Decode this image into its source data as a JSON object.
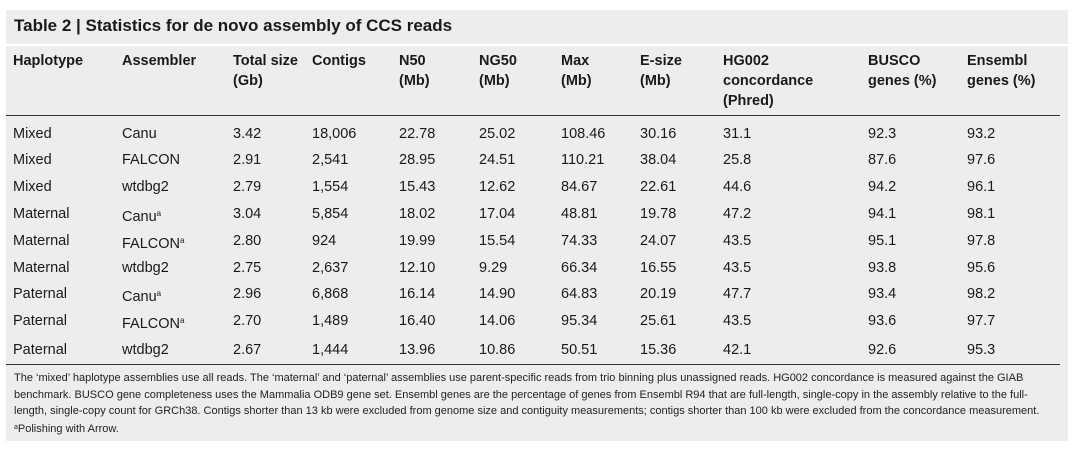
{
  "caption": {
    "label": "Table 2 | ",
    "title": "Statistics for de novo assembly of CCS reads"
  },
  "columns": [
    {
      "key": "haplotype",
      "lines": [
        "Haplotype"
      ]
    },
    {
      "key": "assembler",
      "lines": [
        "Assembler"
      ]
    },
    {
      "key": "total_size",
      "lines": [
        "Total size",
        "(Gb)"
      ]
    },
    {
      "key": "contigs",
      "lines": [
        "Contigs"
      ]
    },
    {
      "key": "n50",
      "lines": [
        "N50",
        "(Mb)"
      ]
    },
    {
      "key": "ng50",
      "lines": [
        "NG50",
        "(Mb)"
      ]
    },
    {
      "key": "max",
      "lines": [
        "Max",
        "(Mb)"
      ]
    },
    {
      "key": "e_size",
      "lines": [
        "E-size",
        "(Mb)"
      ]
    },
    {
      "key": "hg002",
      "lines": [
        "HG002",
        "concordance",
        "(Phred)"
      ]
    },
    {
      "key": "busco",
      "lines": [
        "BUSCO",
        "genes (%)"
      ]
    },
    {
      "key": "ensembl",
      "lines": [
        "Ensembl",
        "genes (%)"
      ]
    }
  ],
  "rows": [
    {
      "haplotype": "Mixed",
      "assembler": "Canu",
      "mark": "",
      "total_size": "3.42",
      "contigs": "18,006",
      "n50": "22.78",
      "ng50": "25.02",
      "max": "108.46",
      "e_size": "30.16",
      "hg002": "31.1",
      "busco": "92.3",
      "ensembl": "93.2"
    },
    {
      "haplotype": "Mixed",
      "assembler": "FALCON",
      "mark": "",
      "total_size": "2.91",
      "contigs": "2,541",
      "n50": "28.95",
      "ng50": "24.51",
      "max": "110.21",
      "e_size": "38.04",
      "hg002": "25.8",
      "busco": "87.6",
      "ensembl": "97.6"
    },
    {
      "haplotype": "Mixed",
      "assembler": "wtdbg2",
      "mark": "",
      "total_size": "2.79",
      "contigs": "1,554",
      "n50": "15.43",
      "ng50": "12.62",
      "max": "84.67",
      "e_size": "22.61",
      "hg002": "44.6",
      "busco": "94.2",
      "ensembl": "96.1"
    },
    {
      "haplotype": "Maternal",
      "assembler": "Canu",
      "mark": "a",
      "total_size": "3.04",
      "contigs": "5,854",
      "n50": "18.02",
      "ng50": "17.04",
      "max": "48.81",
      "e_size": "19.78",
      "hg002": "47.2",
      "busco": "94.1",
      "ensembl": "98.1"
    },
    {
      "haplotype": "Maternal",
      "assembler": "FALCON",
      "mark": "a",
      "total_size": "2.80",
      "contigs": "924",
      "n50": "19.99",
      "ng50": "15.54",
      "max": "74.33",
      "e_size": "24.07",
      "hg002": "43.5",
      "busco": "95.1",
      "ensembl": "97.8"
    },
    {
      "haplotype": "Maternal",
      "assembler": "wtdbg2",
      "mark": "",
      "total_size": "2.75",
      "contigs": "2,637",
      "n50": "12.10",
      "ng50": "9.29",
      "max": "66.34",
      "e_size": "16.55",
      "hg002": "43.5",
      "busco": "93.8",
      "ensembl": "95.6"
    },
    {
      "haplotype": "Paternal",
      "assembler": "Canu",
      "mark": "a",
      "total_size": "2.96",
      "contigs": "6,868",
      "n50": "16.14",
      "ng50": "14.90",
      "max": "64.83",
      "e_size": "20.19",
      "hg002": "47.7",
      "busco": "93.4",
      "ensembl": "98.2"
    },
    {
      "haplotype": "Paternal",
      "assembler": "FALCON",
      "mark": "a",
      "total_size": "2.70",
      "contigs": "1,489",
      "n50": "16.40",
      "ng50": "14.06",
      "max": "95.34",
      "e_size": "25.61",
      "hg002": "43.5",
      "busco": "93.6",
      "ensembl": "97.7"
    },
    {
      "haplotype": "Paternal",
      "assembler": "wtdbg2",
      "mark": "",
      "total_size": "2.67",
      "contigs": "1,444",
      "n50": "13.96",
      "ng50": "10.86",
      "max": "50.51",
      "e_size": "15.36",
      "hg002": "42.1",
      "busco": "92.6",
      "ensembl": "95.3"
    }
  ],
  "footnote": {
    "text": "The ‘mixed’ haplotype assemblies use all reads. The ‘maternal’ and ‘paternal’ assemblies use parent-specific reads from trio binning plus unassigned reads. HG002 concordance is measured against the GIAB benchmark. BUSCO gene completeness uses the Mammalia ODB9 gene set. Ensembl genes are the percentage of genes from Ensembl R94 that are full-length, single-copy in the assembly relative to the full-length, single-copy count for GRCh38. Contigs shorter than 13 kb were excluded from genome size and contiguity measurements; contigs shorter than 100 kb were excluded from the concordance measurement. ",
    "mark": "a",
    "note": "Polishing with Arrow."
  }
}
